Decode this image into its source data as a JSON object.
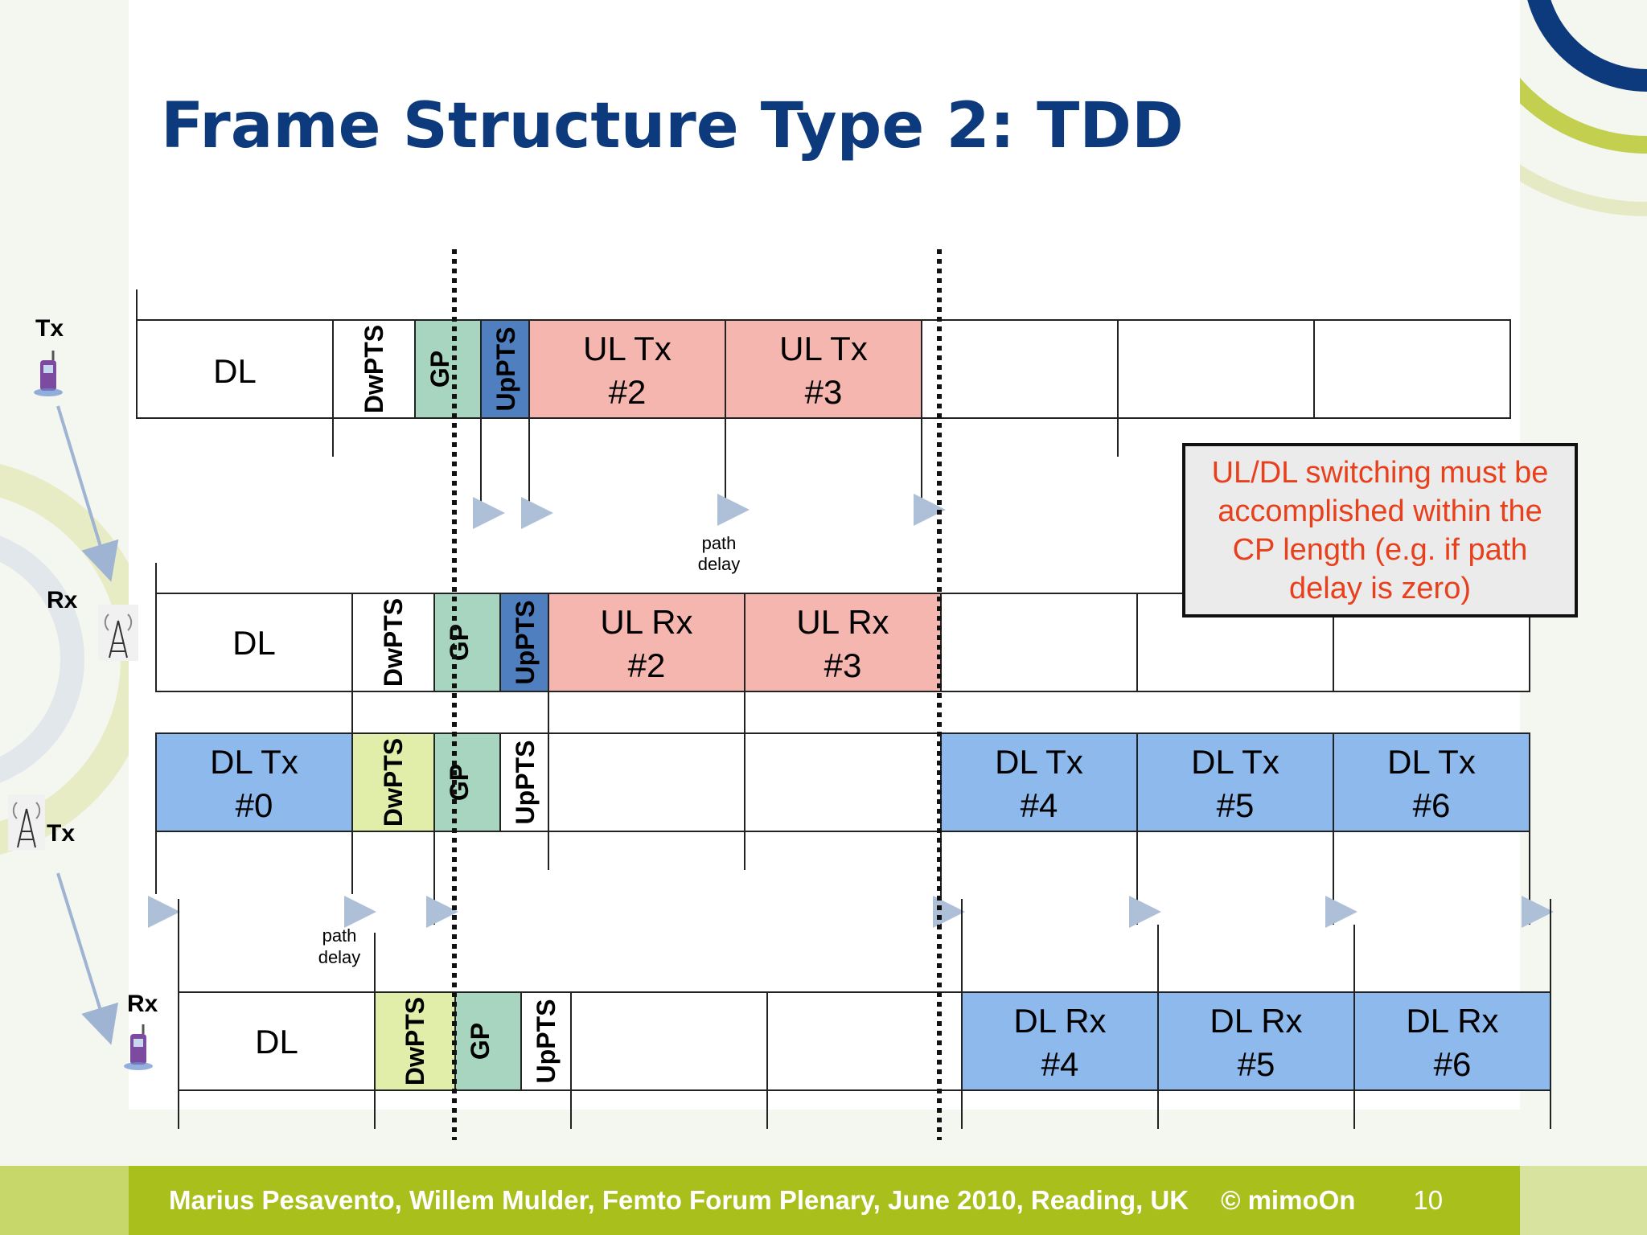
{
  "title": "Frame Structure Type 2: TDD",
  "rows": {
    "tx1": {
      "label": "Tx",
      "dl": "DL",
      "dwpts": "DwPTS",
      "gp": "GP",
      "uppts": "UpPTS",
      "sf2": [
        "UL Tx",
        "#2"
      ],
      "sf3": [
        "UL Tx",
        "#3"
      ]
    },
    "rx1": {
      "label": "Rx",
      "dl": "DL",
      "dwpts": "DwPTS",
      "gp": "GP",
      "uppts": "UpPTS",
      "sf2": [
        "UL Rx",
        "#2"
      ],
      "sf3": [
        "UL Rx",
        "#3"
      ]
    },
    "tx2": {
      "label": "Tx",
      "sf0": [
        "DL Tx",
        "#0"
      ],
      "dwpts": "DwPTS",
      "gp": "GP",
      "uppts": "UpPTS",
      "sf4": [
        "DL Tx",
        "#4"
      ],
      "sf5": [
        "DL Tx",
        "#5"
      ],
      "sf6": [
        "DL Tx",
        "#6"
      ]
    },
    "rx2": {
      "label": "Rx",
      "dl": "DL",
      "dwpts": "DwPTS",
      "gp": "GP",
      "uppts": "UpPTS",
      "sf4": [
        "DL Rx",
        "#4"
      ],
      "sf5": [
        "DL Rx",
        "#5"
      ],
      "sf6": [
        "DL Rx",
        "#6"
      ]
    }
  },
  "path_delay_1": [
    "path",
    "delay"
  ],
  "path_delay_2": [
    "path",
    "delay"
  ],
  "note": "UL/DL switching must be accomplished within the CP length (e.g. if path delay is zero)",
  "footer": {
    "text": "Marius Pesavento, Willem Mulder, Femto Forum Plenary, June 2010,  Reading, UK",
    "copyright": "© mimoOn",
    "page": "10"
  },
  "colors": {
    "title": "#0d3a7c",
    "ul": "#f4b6ae",
    "dl": "#8db9ec",
    "gp": "#a8d5bf",
    "dwpts_dl": "#e1eeaa",
    "uppts_ul": "#4f7fbf",
    "note_text": "#e8401c",
    "footer_bar": "#a9bf1c"
  }
}
